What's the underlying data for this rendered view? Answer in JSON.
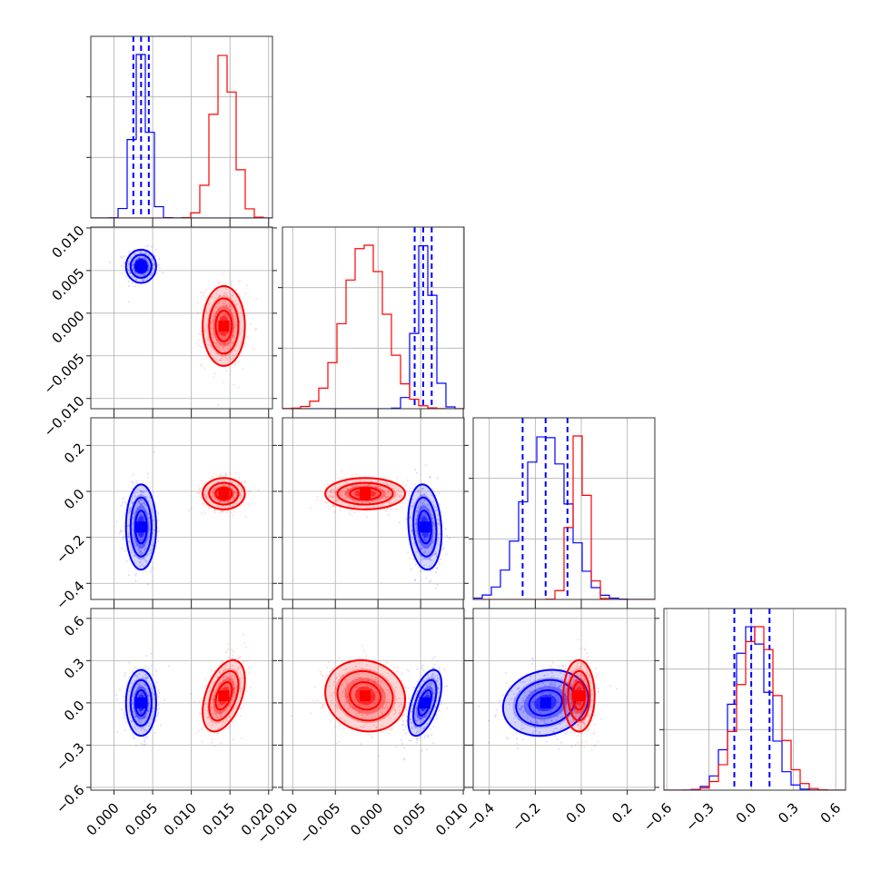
{
  "chart_data": {
    "type": "corner",
    "parameters": [
      {
        "ticks": [
          0.0,
          0.005,
          0.01,
          0.015,
          0.02
        ],
        "tick_labels": [
          "0.000",
          "0.005",
          "0.010",
          "0.015",
          "0.020"
        ],
        "range": [
          -0.003,
          0.0205
        ]
      },
      {
        "ticks": [
          -0.01,
          -0.005,
          0.0,
          0.005,
          0.01
        ],
        "tick_labels": [
          "−0.010",
          "−0.005",
          "0.000",
          "0.005",
          "0.010"
        ],
        "range": [
          -0.0112,
          0.0101
        ]
      },
      {
        "ticks": [
          -0.4,
          -0.2,
          0.0,
          0.2
        ],
        "tick_labels": [
          "−0.4",
          "−0.2",
          "0.0",
          "0.2"
        ],
        "range": [
          -0.47,
          0.32
        ]
      },
      {
        "ticks": [
          -0.6,
          -0.3,
          0.0,
          0.3,
          0.6
        ],
        "tick_labels": [
          "−0.6",
          "−0.3",
          "0.0",
          "0.3",
          "0.6"
        ],
        "range": [
          -0.62,
          0.67
        ]
      }
    ],
    "series": [
      {
        "color": "#0000ff",
        "means": [
          0.0035,
          0.0055,
          -0.155,
          0.0
        ],
        "sds": [
          0.001,
          0.001,
          0.095,
          0.12
        ],
        "correlations": {
          "2-0": 0.0,
          "1-0": 0.0,
          "2-1": -0.15,
          "3-0": 0.0,
          "3-1": 0.55,
          "3-2": 0.15
        },
        "quantiles": [
          [
            0.0025,
            0.0035,
            0.0045
          ],
          [
            0.0043,
            0.0053,
            0.0063
          ],
          [
            -0.255,
            -0.155,
            -0.06
          ],
          [
            -0.12,
            0.0,
            0.13
          ]
        ]
      },
      {
        "color": "#ff0000",
        "means": [
          0.0142,
          -0.0015,
          -0.01,
          0.05
        ],
        "sds": [
          0.0014,
          0.0024,
          0.035,
          0.13
        ],
        "correlations": {
          "2-0": 0.0,
          "1-0": 0.0,
          "2-1": 0.0,
          "3-0": 0.45,
          "3-1": -0.1,
          "3-2": 0.0
        }
      }
    ],
    "grid": true
  }
}
